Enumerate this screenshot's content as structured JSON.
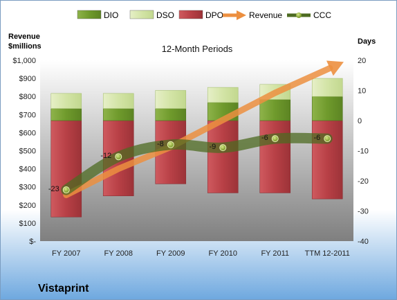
{
  "chart_data": {
    "type": "bar",
    "title": "12-Month Periods",
    "footer": "Vistaprint",
    "ylabel_left": "Revenue\n$millions",
    "ylabel_right": "Days",
    "categories": [
      "FY 2007",
      "FY 2008",
      "FY 2009",
      "FY 2010",
      "FY 2011",
      "TTM 12-2011"
    ],
    "ylim_left": [
      0,
      1000
    ],
    "yticks_left": [
      "$-",
      "$100",
      "$200",
      "$300",
      "$400",
      "$500",
      "$600",
      "$700",
      "$800",
      "$900",
      "$1,000"
    ],
    "ylim_right": [
      -40,
      20
    ],
    "yticks_right": [
      "-40",
      "-30",
      "-20",
      "-10",
      "0",
      "10",
      "20"
    ],
    "stack_baseline_days": 0,
    "series": [
      {
        "name": "DIO",
        "kind": "bar",
        "axis": "right",
        "values": [
          4,
          4,
          4,
          6,
          7,
          8
        ],
        "color": "#6f9a2c"
      },
      {
        "name": "DSO",
        "kind": "bar",
        "axis": "right",
        "values": [
          5,
          5,
          6,
          5,
          5,
          6
        ],
        "color": "#d3e4a6"
      },
      {
        "name": "DPO",
        "kind": "bar",
        "axis": "right",
        "values": [
          -32,
          -25,
          -21,
          -24,
          -24,
          -26
        ],
        "color": "#b84046"
      },
      {
        "name": "Revenue",
        "kind": "arrow",
        "axis": "left",
        "values": [
          255,
          400,
          520,
          670,
          820,
          950
        ],
        "color": "#ec8f3f"
      },
      {
        "name": "CCC",
        "kind": "line",
        "axis": "right",
        "values": [
          -23,
          -12,
          -8,
          -9,
          -6,
          -6
        ],
        "labels": [
          "-23",
          "-12",
          "-8",
          "-9",
          "-6",
          "-6"
        ],
        "color": "#66812d"
      }
    ],
    "legend_position": "top",
    "grid": false
  }
}
